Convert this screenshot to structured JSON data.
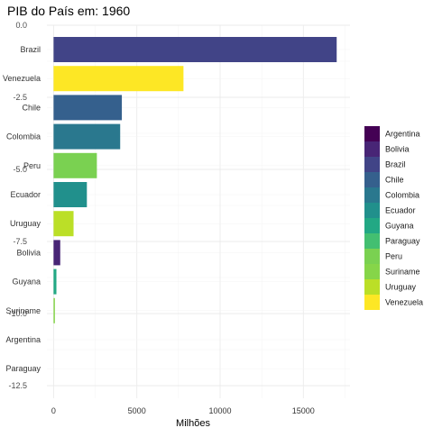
{
  "chart_data": {
    "type": "bar",
    "orientation": "horizontal",
    "title": "PIB do País em: 1960",
    "xlabel": "Milhões",
    "ylabel": "",
    "xlim": [
      -400,
      17800
    ],
    "x_ticks": [
      "0",
      "5000",
      "10000",
      "15000"
    ],
    "x_tick_values": [
      0,
      5000,
      10000,
      15000
    ],
    "ghost_y_ticks": [
      "0.0",
      "-2.5",
      "-5.0",
      "-7.5",
      "-10.0",
      "-12.5"
    ],
    "ghost_y_tick_values": [
      0.0,
      -2.5,
      -5.0,
      -7.5,
      -10.0,
      -12.5
    ],
    "grid": true,
    "legend_position": "right",
    "categories": [
      "Brazil",
      "Venezuela",
      "Chile",
      "Colombia",
      "Peru",
      "Ecuador",
      "Uruguay",
      "Bolivia",
      "Guyana",
      "Suriname",
      "Argentina",
      "Paraguay"
    ],
    "values": [
      17000,
      7800,
      4100,
      4000,
      2600,
      2000,
      1200,
      400,
      170,
      80,
      0,
      0
    ],
    "legend": [
      {
        "name": "Argentina",
        "color": "#440154"
      },
      {
        "name": "Bolivia",
        "color": "#482576"
      },
      {
        "name": "Brazil",
        "color": "#414487"
      },
      {
        "name": "Chile",
        "color": "#35608D"
      },
      {
        "name": "Colombia",
        "color": "#2A788E"
      },
      {
        "name": "Ecuador",
        "color": "#21908C"
      },
      {
        "name": "Guyana",
        "color": "#22A884"
      },
      {
        "name": "Paraguay",
        "color": "#43BF71"
      },
      {
        "name": "Peru",
        "color": "#7AD151"
      },
      {
        "name": "Suriname",
        "color": "#86D549"
      },
      {
        "name": "Uruguay",
        "color": "#BBDF27"
      },
      {
        "name": "Venezuela",
        "color": "#FDE725"
      }
    ]
  }
}
